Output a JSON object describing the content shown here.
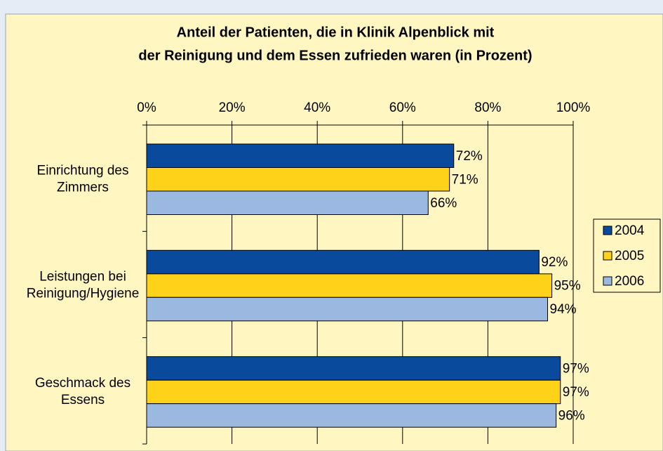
{
  "chart_data": {
    "type": "barh",
    "title": "Anteil der Patienten, die in Klinik Alpenblick mit der Reinigung und dem Essen zufrieden waren (in Prozent)",
    "categories": [
      "Einrichtung des Zimmers",
      "Leistungen bei Reinigung/Hygiene",
      "Geschmack des Essens"
    ],
    "series": [
      {
        "name": "2004",
        "color": "#0a4a9c",
        "values": [
          72,
          92,
          97
        ],
        "value_labels": [
          "72%",
          "92%",
          "97%"
        ]
      },
      {
        "name": "2005",
        "color": "#ffd21a",
        "values": [
          71,
          95,
          97
        ],
        "value_labels": [
          "71%",
          "95%",
          "97%"
        ]
      },
      {
        "name": "2006",
        "color": "#9ab8e0",
        "values": [
          66,
          94,
          96
        ],
        "value_labels": [
          "66%",
          "94%",
          "96%"
        ]
      }
    ],
    "xlim": [
      0,
      100
    ],
    "xticks": [
      {
        "value": 0,
        "label": "0%"
      },
      {
        "value": 20,
        "label": "20%"
      },
      {
        "value": 40,
        "label": "40%"
      },
      {
        "value": 60,
        "label": "60%"
      },
      {
        "value": 80,
        "label": "80%"
      },
      {
        "value": 100,
        "label": "100%"
      }
    ],
    "legend": "right"
  }
}
